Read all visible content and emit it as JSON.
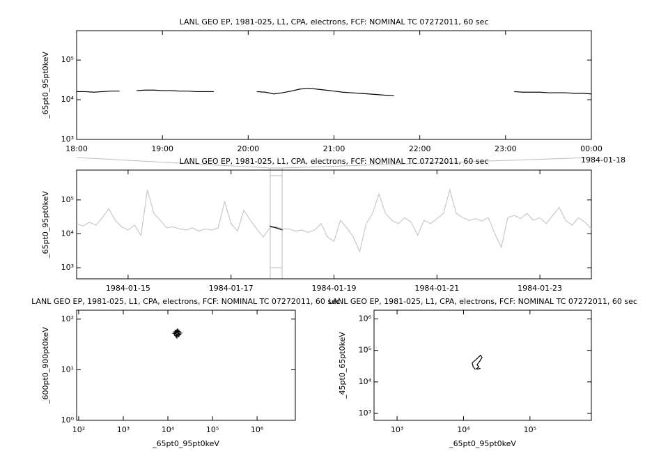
{
  "chart_data": [
    {
      "type": "line",
      "title": "LANL GEO EP, 1981-025, L1, CPA, electrons, FCF: NOMINAL TC 07272011, 60 sec",
      "ylabel": "_65pt0_95pt0keV",
      "y_log": true,
      "ylim": [
        1000,
        550000
      ],
      "yticks": [
        {
          "value": 1000,
          "label": "10³"
        },
        {
          "value": 10000,
          "label": "10⁴"
        },
        {
          "value": 100000,
          "label": "10⁵"
        }
      ],
      "xlim": [
        18,
        24
      ],
      "xticks": [
        {
          "value": 18,
          "label": "18:00"
        },
        {
          "value": 19,
          "label": "19:00"
        },
        {
          "value": 20,
          "label": "20:00"
        },
        {
          "value": 21,
          "label": "21:00"
        },
        {
          "value": 22,
          "label": "22:00"
        },
        {
          "value": 23,
          "label": "23:00"
        },
        {
          "value": 24,
          "label": "00:00"
        }
      ],
      "annotation": "1984-01-18",
      "x": [
        18.0,
        18.1,
        18.2,
        18.3,
        18.4,
        18.5,
        18.6,
        18.7,
        18.8,
        18.9,
        19.0,
        19.1,
        19.2,
        19.3,
        19.4,
        19.5,
        19.6,
        19.7,
        19.8,
        19.9,
        20.0,
        20.1,
        20.2,
        20.3,
        20.4,
        20.5,
        20.6,
        20.7,
        20.8,
        20.9,
        21.0,
        21.1,
        21.2,
        21.3,
        21.4,
        21.5,
        21.6,
        21.7,
        21.8,
        21.9,
        22.0,
        22.1,
        22.2,
        22.3,
        22.4,
        22.5,
        22.6,
        22.7,
        22.8,
        22.9,
        23.0,
        23.1,
        23.2,
        23.3,
        23.4,
        23.5,
        23.6,
        23.7,
        23.8,
        23.9,
        24.0
      ],
      "series": [
        {
          "color": "#000000",
          "values": [
            16000,
            16000,
            15500,
            16000,
            16500,
            16500,
            null,
            17000,
            17500,
            17500,
            17000,
            17000,
            16500,
            16500,
            16000,
            16000,
            16000,
            null,
            null,
            null,
            null,
            16000,
            15500,
            14000,
            15000,
            16500,
            18500,
            19500,
            18500,
            17500,
            16500,
            15500,
            15000,
            14500,
            14000,
            13500,
            13000,
            12500,
            null,
            null,
            null,
            null,
            null,
            null,
            null,
            null,
            null,
            null,
            null,
            null,
            null,
            16000,
            15500,
            15500,
            15500,
            15000,
            15000,
            15000,
            14500,
            14500,
            14000
          ]
        }
      ]
    },
    {
      "type": "line",
      "title": "LANL GEO EP, 1981-025, L1, CPA, electrons, FCF: NOMINAL TC 07272011, 60 sec",
      "ylabel": "_65pt0_95pt0keV",
      "y_log": true,
      "ylim": [
        470,
        760000
      ],
      "yticks": [
        {
          "value": 1000,
          "label": "10³"
        },
        {
          "value": 10000,
          "label": "10⁴"
        },
        {
          "value": 100000,
          "label": "10⁵"
        }
      ],
      "xlim": [
        14,
        24
      ],
      "xticks": [
        {
          "value": 15,
          "label": "1984-01-15"
        },
        {
          "value": 17,
          "label": "1984-01-17"
        },
        {
          "value": 19,
          "label": "1984-01-19"
        },
        {
          "value": 21,
          "label": "1984-01-21"
        },
        {
          "value": 23,
          "label": "1984-01-23"
        }
      ],
      "x": [
        14.0,
        14.125,
        14.25,
        14.375,
        14.5,
        14.625,
        14.75,
        14.875,
        15.0,
        15.125,
        15.25,
        15.375,
        15.5,
        15.625,
        15.75,
        15.875,
        16.0,
        16.125,
        16.25,
        16.375,
        16.5,
        16.625,
        16.75,
        16.875,
        17.0,
        17.125,
        17.25,
        17.375,
        17.5,
        17.625,
        17.75,
        17.875,
        18.0,
        18.125,
        18.25,
        18.375,
        18.5,
        18.625,
        18.75,
        18.875,
        19.0,
        19.125,
        19.25,
        19.375,
        19.5,
        19.625,
        19.75,
        19.875,
        20.0,
        20.125,
        20.25,
        20.375,
        20.5,
        20.625,
        20.75,
        20.875,
        21.0,
        21.125,
        21.25,
        21.375,
        21.5,
        21.625,
        21.75,
        21.875,
        22.0,
        22.125,
        22.25,
        22.375,
        22.5,
        22.625,
        22.75,
        22.875,
        23.0,
        23.125,
        23.25,
        23.375,
        23.5,
        23.625,
        23.75,
        23.875,
        24.0
      ],
      "series": [
        {
          "color": "#c8c8c8",
          "values": [
            20000,
            17000,
            22000,
            18000,
            30000,
            55000,
            25000,
            16000,
            13000,
            18000,
            9000,
            200000,
            40000,
            25000,
            15000,
            16000,
            14000,
            13000,
            15000,
            12000,
            14000,
            13000,
            15000,
            90000,
            20000,
            12000,
            50000,
            25000,
            14000,
            8000,
            15000,
            16000,
            14000,
            14000,
            12000,
            13000,
            11000,
            13000,
            20000,
            8000,
            6000,
            25000,
            15000,
            8000,
            3000,
            20000,
            40000,
            150000,
            40000,
            25000,
            20000,
            30000,
            22000,
            9000,
            25000,
            20000,
            28000,
            40000,
            200000,
            40000,
            30000,
            25000,
            28000,
            24000,
            30000,
            10000,
            4000,
            30000,
            35000,
            28000,
            40000,
            25000,
            30000,
            20000,
            35000,
            60000,
            25000,
            18000,
            30000,
            22000,
            14000
          ]
        },
        {
          "color": "#000000",
          "values": [
            null,
            null,
            null,
            null,
            null,
            null,
            null,
            null,
            null,
            null,
            null,
            null,
            null,
            null,
            null,
            null,
            null,
            null,
            null,
            null,
            null,
            null,
            null,
            null,
            null,
            null,
            null,
            null,
            null,
            null,
            17000,
            15000,
            13000,
            null,
            null,
            null,
            null,
            null,
            null,
            null,
            null,
            null,
            null,
            null,
            null,
            null,
            null,
            null,
            null,
            null,
            null,
            null,
            null,
            null,
            null,
            null,
            null,
            null,
            null,
            null,
            null,
            null,
            null,
            null,
            null,
            null,
            null,
            null,
            null,
            null,
            null,
            null,
            null,
            null,
            null,
            null,
            null,
            null,
            null,
            null,
            null
          ]
        }
      ]
    },
    {
      "type": "scatter",
      "title": "LANL GEO EP, 1981-025, L1, CPA, electrons, FCF: NOMINAL TC 07272011, 60 sec",
      "xlabel": "_65pt0_95pt0keV",
      "ylabel": "_600pt0_900pt0keV",
      "x_log": true,
      "y_log": true,
      "xlim": [
        90,
        7200000
      ],
      "ylim": [
        1,
        150
      ],
      "xticks": [
        {
          "value": 100,
          "label": "10²"
        },
        {
          "value": 1000,
          "label": "10³"
        },
        {
          "value": 10000,
          "label": "10⁴"
        },
        {
          "value": 100000,
          "label": "10⁵"
        },
        {
          "value": 1000000,
          "label": "10⁶"
        }
      ],
      "yticks": [
        {
          "value": 1,
          "label": "10⁰"
        },
        {
          "value": 10,
          "label": "10¹"
        },
        {
          "value": 100,
          "label": "10²"
        }
      ],
      "x": [
        14000,
        15000,
        16000,
        17000,
        18000,
        15500,
        16500,
        17500,
        14500,
        19000,
        16000,
        15000,
        17000
      ],
      "series": [
        {
          "color": "#000000",
          "values": [
            52,
            55,
            58,
            54,
            50,
            47,
            60,
            49,
            56,
            53,
            45,
            51,
            57
          ]
        }
      ]
    },
    {
      "type": "line",
      "title": "LANL GEO EP, 1981-025, L1, CPA, electrons, FCF: NOMINAL TC 07272011, 60 sec",
      "xlabel": "_65pt0_95pt0keV",
      "ylabel": "_45pt0_65pt0keV",
      "x_log": true,
      "y_log": true,
      "xlim": [
        450,
        840000
      ],
      "ylim": [
        600,
        1900000
      ],
      "xticks": [
        {
          "value": 1000,
          "label": "10³"
        },
        {
          "value": 10000,
          "label": "10⁴"
        },
        {
          "value": 100000,
          "label": "10⁵"
        }
      ],
      "yticks": [
        {
          "value": 1000,
          "label": "10³"
        },
        {
          "value": 10000,
          "label": "10⁴"
        },
        {
          "value": 100000,
          "label": "10⁵"
        },
        {
          "value": 1000000,
          "label": "10⁶"
        }
      ],
      "x": [
        15000,
        14000,
        13500,
        16000,
        18000,
        19000,
        17500,
        16000,
        17000,
        16000,
        15500,
        16500,
        18000
      ],
      "series": [
        {
          "color": "#000000",
          "values": [
            25000,
            30000,
            40000,
            55000,
            70000,
            60000,
            45000,
            35000,
            30000,
            27000,
            26000,
            25500,
            27000
          ]
        }
      ]
    }
  ]
}
